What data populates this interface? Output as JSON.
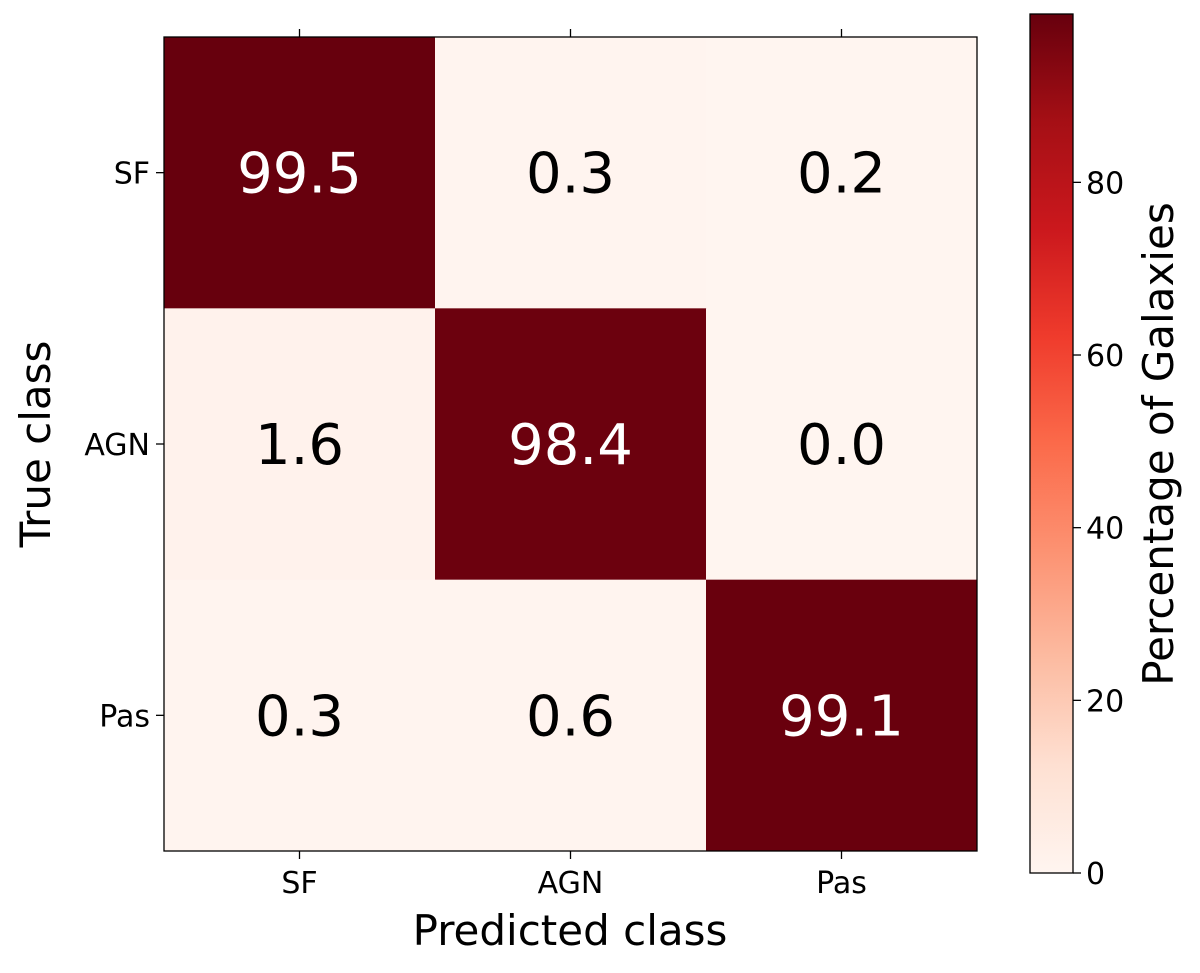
{
  "chart_data": {
    "type": "heatmap",
    "title": "",
    "xlabel": "Predicted class",
    "ylabel": "True class",
    "x_categories": [
      "SF",
      "AGN",
      "Pas"
    ],
    "y_categories": [
      "SF",
      "AGN",
      "Pas"
    ],
    "values": [
      [
        99.5,
        0.3,
        0.2
      ],
      [
        1.6,
        98.4,
        0.0
      ],
      [
        0.3,
        0.6,
        99.1
      ]
    ],
    "cell_labels": [
      [
        "99.5",
        "0.3",
        "0.2"
      ],
      [
        "1.6",
        "98.4",
        "0.0"
      ],
      [
        "0.3",
        "0.6",
        "99.1"
      ]
    ],
    "colormap": "Reds",
    "colormap_stops": [
      "#fff5f0",
      "#fee0d2",
      "#fcbba1",
      "#fc9272",
      "#fb6a4a",
      "#ef3b2c",
      "#cb181d",
      "#a50f15",
      "#67000d"
    ],
    "colorbar": {
      "label": "Percentage of Galaxies",
      "range": [
        0,
        99.5
      ],
      "ticks": [
        0,
        20,
        40,
        60,
        80
      ],
      "tick_labels": [
        "0",
        "20",
        "40",
        "60",
        "80"
      ]
    }
  }
}
